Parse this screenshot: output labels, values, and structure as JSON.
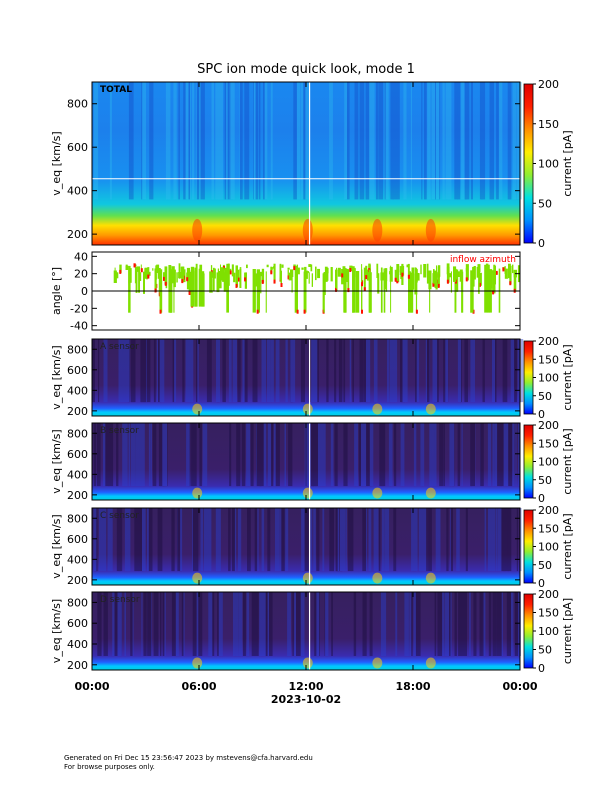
{
  "title": "SPC ion mode quick look, mode 1",
  "footer": {
    "line1": "Generated on Fri Dec 15 23:56:47 2023 by mstevens@cfa.harvard.edu",
    "line2": "For browse purposes only."
  },
  "colors": {
    "colorbar_stops": [
      "#0000ff",
      "#0090ff",
      "#00e0e0",
      "#90ee30",
      "#ffee00",
      "#ff9000",
      "#ff2000",
      "#e00000"
    ],
    "inflow_fill": "#7fe000",
    "inflow_red": "#ff1000",
    "inflow_label": "#ff0000",
    "dark_bg": "#3a1f6a"
  },
  "chart_data": [
    {
      "type": "heatmap",
      "panel_label": "TOTAL",
      "ylabel": "v_eq [km/s]",
      "ylim": [
        150,
        900
      ],
      "yticks": [
        200,
        400,
        600,
        800
      ],
      "colorbar": {
        "label": "current [pA]",
        "range": [
          0,
          200
        ],
        "ticks": [
          0,
          50,
          100,
          150,
          200
        ]
      }
    },
    {
      "type": "line",
      "label": "inflow azimuth",
      "ylabel": "angle [°]",
      "ylim": [
        -45,
        45
      ],
      "yticks": [
        -40,
        -20,
        0,
        20,
        40
      ]
    },
    {
      "type": "heatmap",
      "panel_label": "A sensor",
      "ylabel": "v_eq [km/s]",
      "ylim": [
        150,
        900
      ],
      "yticks": [
        200,
        400,
        600,
        800
      ],
      "colorbar": {
        "label": "current [pA]",
        "range": [
          0,
          200
        ],
        "ticks": [
          0,
          50,
          100,
          150,
          200
        ]
      }
    },
    {
      "type": "heatmap",
      "panel_label": "B sensor",
      "ylabel": "v_eq [km/s]",
      "ylim": [
        150,
        900
      ],
      "yticks": [
        200,
        400,
        600,
        800
      ],
      "colorbar": {
        "label": "current [pA]",
        "range": [
          0,
          200
        ],
        "ticks": [
          0,
          50,
          100,
          150,
          200
        ]
      }
    },
    {
      "type": "heatmap",
      "panel_label": "C sensor",
      "ylabel": "v_eq [km/s]",
      "ylim": [
        150,
        900
      ],
      "yticks": [
        200,
        400,
        600,
        800
      ],
      "colorbar": {
        "label": "current [pA]",
        "range": [
          0,
          200
        ],
        "ticks": [
          0,
          50,
          100,
          150,
          200
        ]
      }
    },
    {
      "type": "heatmap",
      "panel_label": "D sensor",
      "ylabel": "v_eq [km/s]",
      "ylim": [
        150,
        900
      ],
      "yticks": [
        200,
        400,
        600,
        800
      ],
      "colorbar": {
        "label": "current [pA]",
        "range": [
          0,
          200
        ],
        "ticks": [
          0,
          50,
          100,
          150,
          200
        ]
      }
    }
  ],
  "x_axis": {
    "tick_labels": [
      "00:00",
      "06:00",
      "12:00",
      "18:00",
      "00:00"
    ],
    "tick_hours": [
      0,
      6,
      12,
      18,
      24
    ],
    "date_label": "2023-10-02"
  }
}
